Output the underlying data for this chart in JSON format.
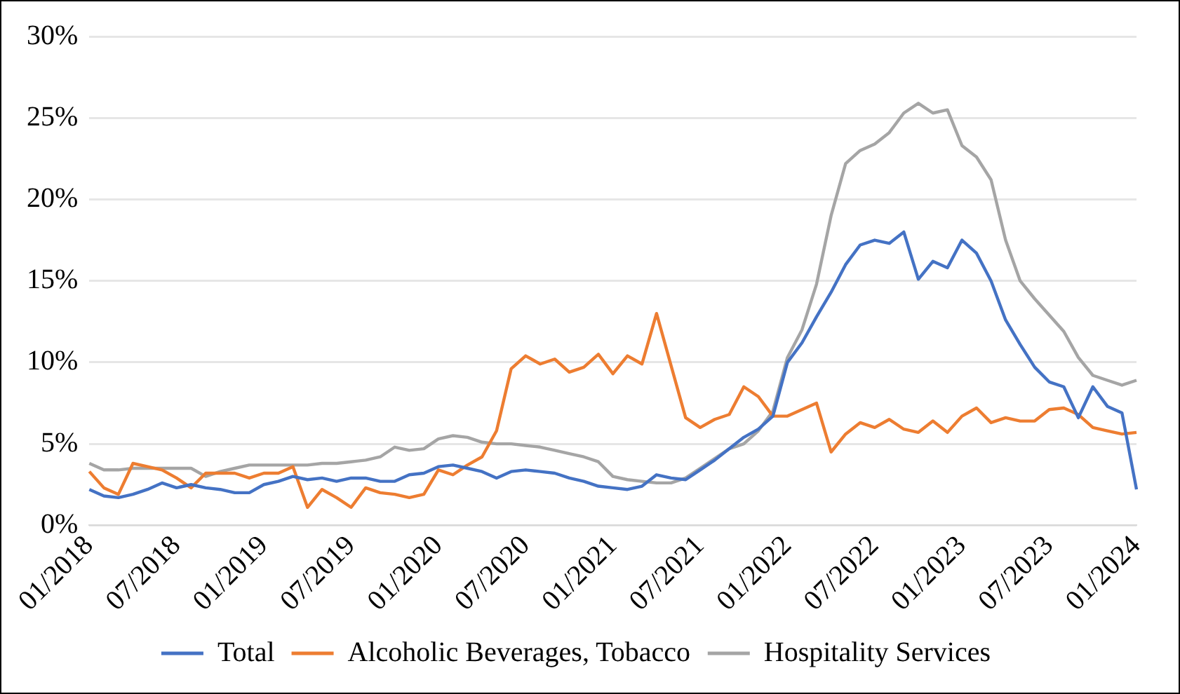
{
  "chart_data": {
    "type": "line",
    "categories": [
      "01/2018",
      null,
      null,
      null,
      null,
      null,
      "07/2018",
      null,
      null,
      null,
      null,
      null,
      "01/2019",
      null,
      null,
      null,
      null,
      null,
      "07/2019",
      null,
      null,
      null,
      null,
      null,
      "01/2020",
      null,
      null,
      null,
      null,
      null,
      "07/2020",
      null,
      null,
      null,
      null,
      null,
      "01/2021",
      null,
      null,
      null,
      null,
      null,
      "07/2021",
      null,
      null,
      null,
      null,
      null,
      "01/2022",
      null,
      null,
      null,
      null,
      null,
      "07/2022",
      null,
      null,
      null,
      null,
      null,
      "01/2023",
      null,
      null,
      null,
      null,
      null,
      "07/2023",
      null,
      null,
      null,
      null,
      null,
      "01/2024"
    ],
    "series": [
      {
        "name": "Total",
        "color": "#4472c4",
        "values": [
          2.2,
          1.8,
          1.7,
          1.9,
          2.2,
          2.6,
          2.3,
          2.5,
          2.3,
          2.2,
          2.0,
          2.0,
          2.5,
          2.7,
          3.0,
          2.8,
          2.9,
          2.7,
          2.9,
          2.9,
          2.7,
          2.7,
          3.1,
          3.2,
          3.6,
          3.7,
          3.5,
          3.3,
          2.9,
          3.3,
          3.4,
          3.3,
          3.2,
          2.9,
          2.7,
          2.4,
          2.3,
          2.2,
          2.4,
          3.1,
          2.9,
          2.8,
          3.4,
          4.0,
          4.7,
          5.4,
          5.9,
          6.7,
          10.0,
          11.2,
          12.8,
          14.3,
          16.0,
          17.2,
          17.5,
          17.3,
          18.0,
          15.1,
          16.2,
          15.8,
          17.5,
          16.7,
          15.0,
          12.6,
          11.1,
          9.7,
          8.8,
          8.5,
          6.6,
          8.5,
          7.3,
          6.9,
          2.2
        ]
      },
      {
        "name": "Alcoholic Beverages, Tobacco",
        "color": "#ed7d31",
        "values": [
          3.3,
          2.3,
          1.9,
          3.8,
          3.6,
          3.4,
          2.9,
          2.3,
          3.2,
          3.2,
          3.2,
          2.9,
          3.2,
          3.2,
          3.6,
          1.1,
          2.2,
          1.7,
          1.1,
          2.3,
          2.0,
          1.9,
          1.7,
          1.9,
          3.4,
          3.1,
          3.7,
          4.2,
          5.8,
          9.6,
          10.4,
          9.9,
          10.2,
          9.4,
          9.7,
          10.5,
          9.3,
          10.4,
          9.9,
          13.0,
          9.8,
          6.6,
          6.0,
          6.5,
          6.8,
          8.5,
          7.9,
          6.7,
          6.7,
          7.1,
          7.5,
          4.5,
          5.6,
          6.3,
          6.0,
          6.5,
          5.9,
          5.7,
          6.4,
          5.7,
          6.7,
          7.2,
          6.3,
          6.6,
          6.4,
          6.4,
          7.1,
          7.2,
          6.8,
          6.0,
          5.8,
          5.6,
          5.7
        ]
      },
      {
        "name": "Hospitality Services",
        "color": "#a5a5a5",
        "values": [
          3.8,
          3.4,
          3.4,
          3.5,
          3.5,
          3.5,
          3.5,
          3.5,
          3.0,
          3.3,
          3.5,
          3.7,
          3.7,
          3.7,
          3.7,
          3.7,
          3.8,
          3.8,
          3.9,
          4.0,
          4.2,
          4.8,
          4.6,
          4.7,
          5.3,
          5.5,
          5.4,
          5.1,
          5.0,
          5.0,
          4.9,
          4.8,
          4.6,
          4.4,
          4.2,
          3.9,
          3.0,
          2.8,
          2.7,
          2.6,
          2.6,
          2.9,
          3.5,
          4.1,
          4.7,
          5.0,
          5.8,
          7.0,
          10.3,
          12.0,
          14.8,
          19.0,
          22.2,
          23.0,
          23.4,
          24.1,
          25.3,
          25.9,
          25.3,
          25.5,
          23.3,
          22.6,
          21.2,
          17.5,
          15.0,
          13.9,
          12.9,
          11.9,
          10.3,
          9.2,
          8.9,
          8.6,
          8.9
        ]
      }
    ],
    "ylim": [
      0,
      30
    ],
    "yticks": [
      {
        "value": 0,
        "label": "0%"
      },
      {
        "value": 5,
        "label": "5%"
      },
      {
        "value": 10,
        "label": "10%"
      },
      {
        "value": 15,
        "label": "15%"
      },
      {
        "value": 20,
        "label": "20%"
      },
      {
        "value": 25,
        "label": "25%"
      },
      {
        "value": 30,
        "label": "30%"
      }
    ],
    "grid": "y",
    "legend": "bottom",
    "marker": "none",
    "line_style": "solid"
  }
}
